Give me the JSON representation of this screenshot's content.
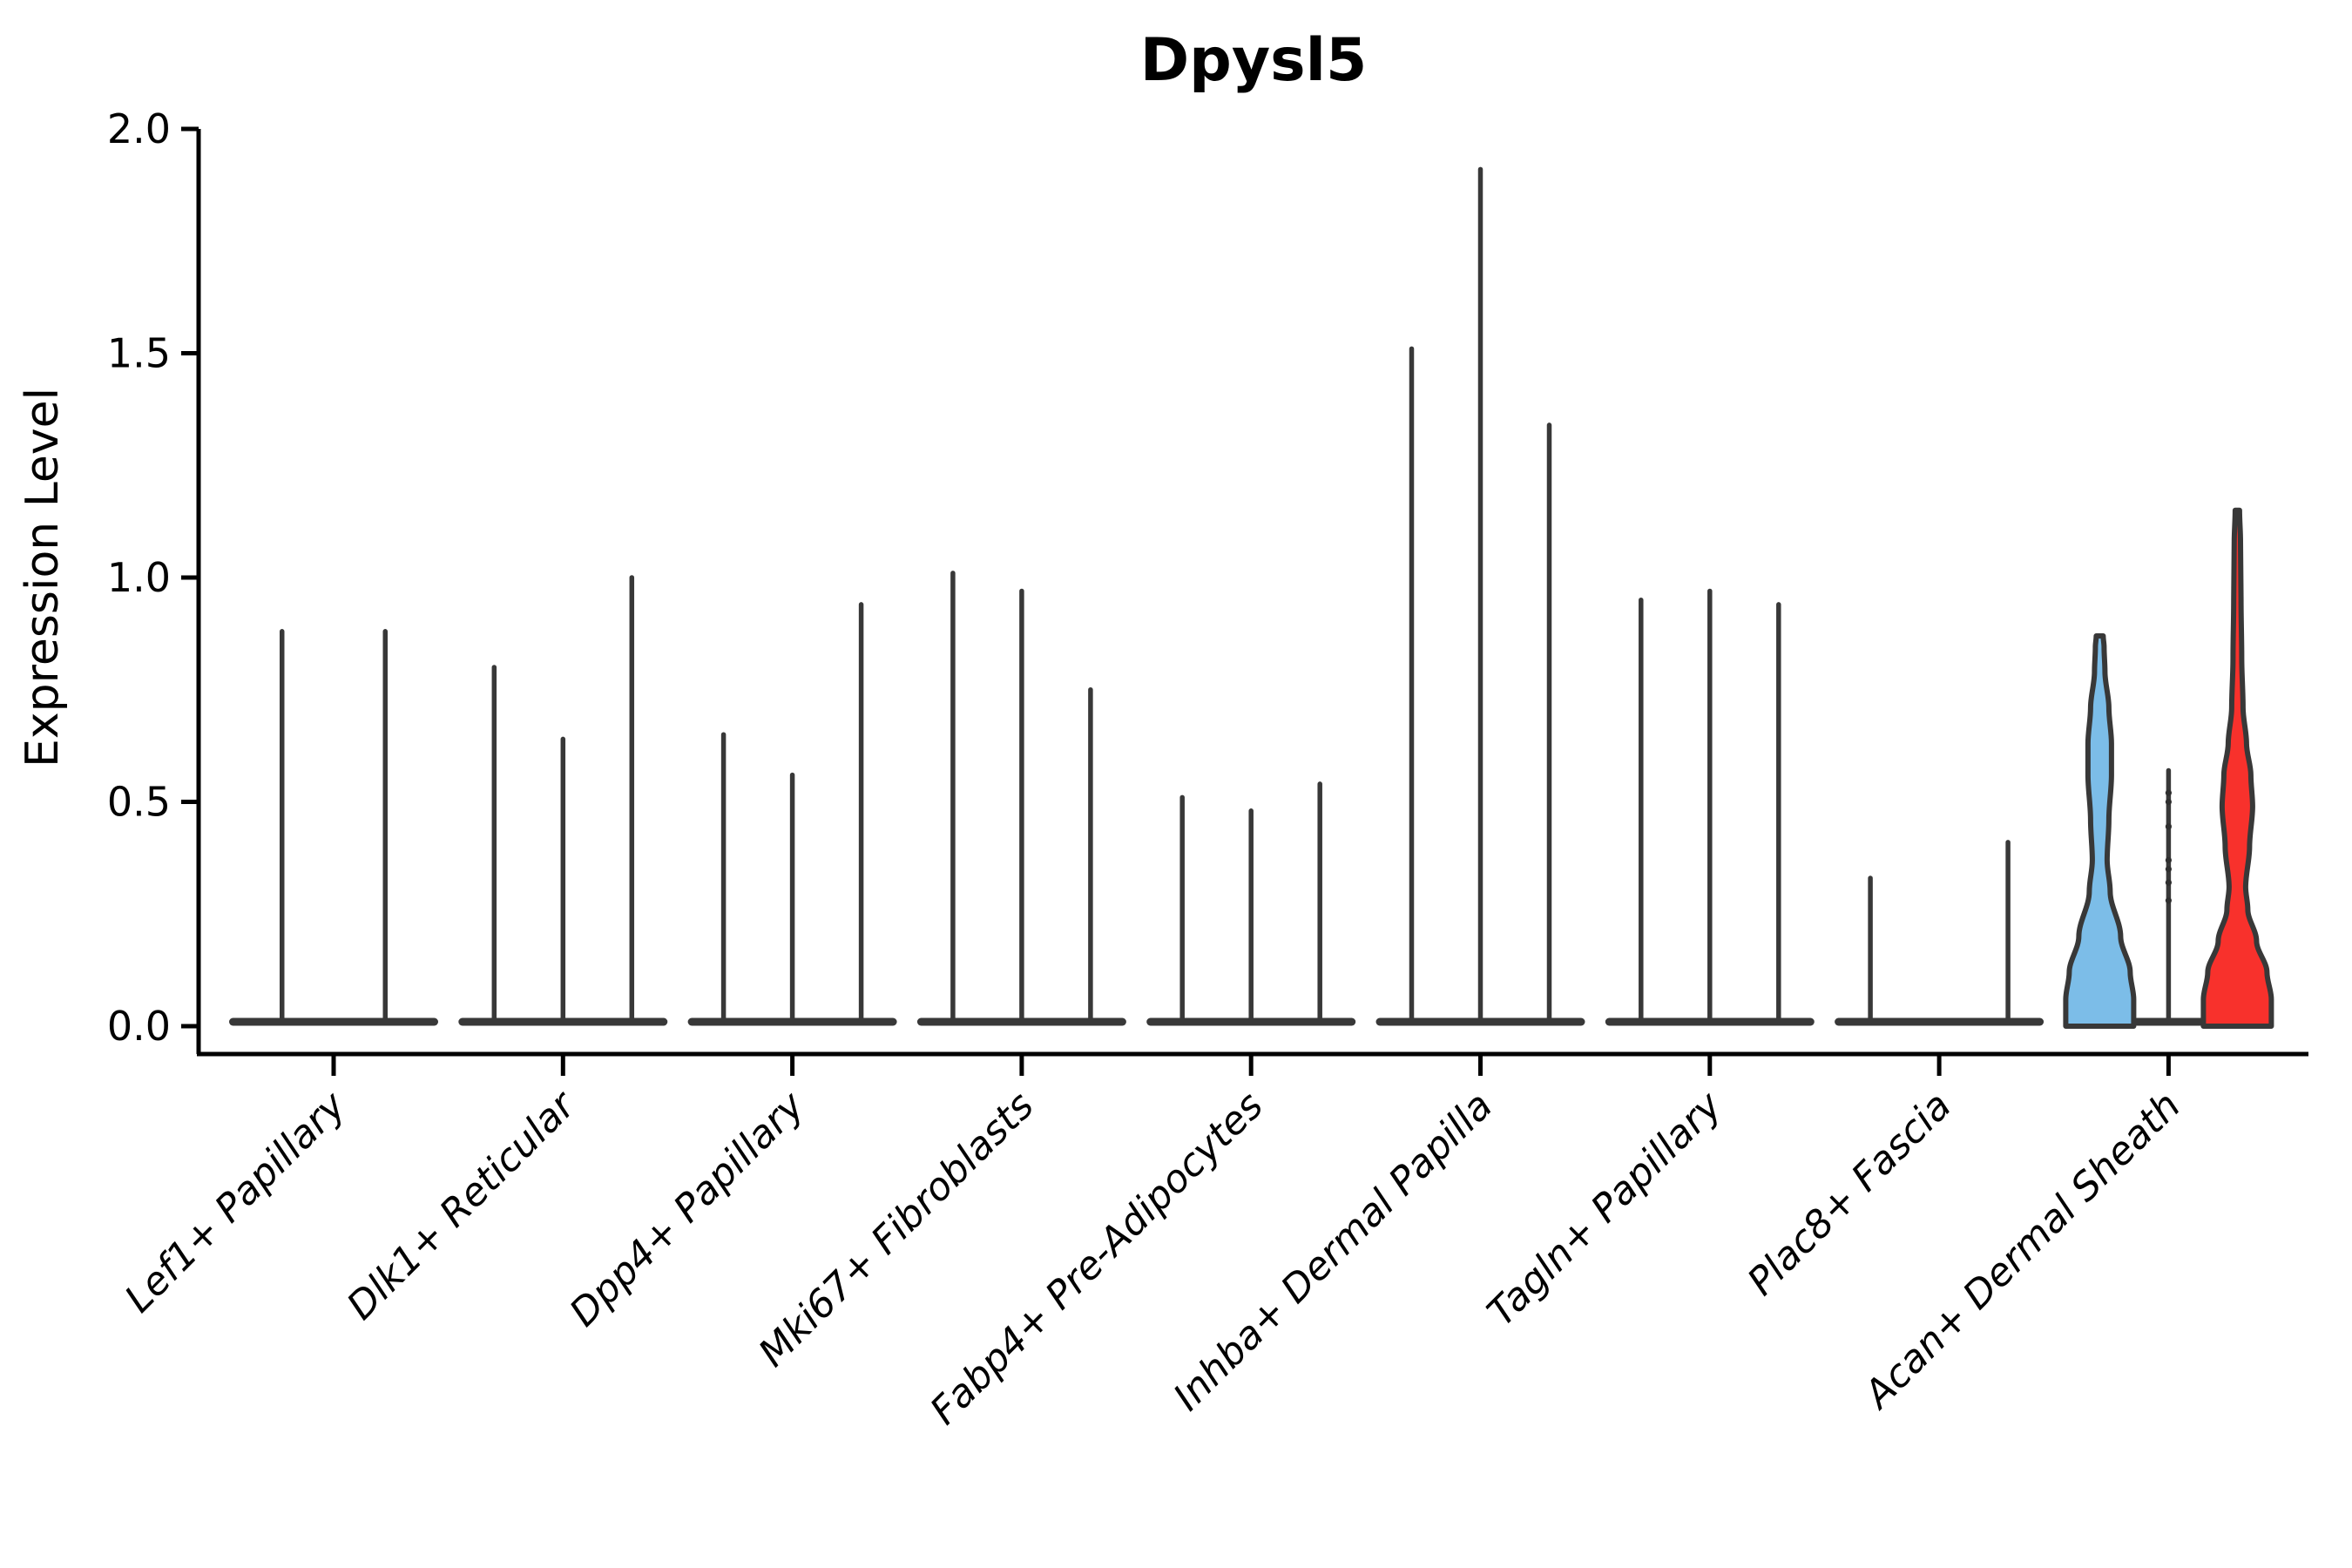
{
  "chart_data": {
    "type": "violin",
    "title": "Dpysl5",
    "ylabel": "Expression Level",
    "xlabel": "",
    "ylim": [
      0,
      2
    ],
    "yticks": [
      0.0,
      0.5,
      1.0,
      1.5,
      2.0
    ],
    "ytick_labels": [
      "0.0",
      "0.5",
      "1.0",
      "1.5",
      "2.0"
    ],
    "grid": false,
    "legend": "none",
    "categories": [
      "Lef1+ Papillary",
      "Dlk1+ Reticular",
      "Dpp4+ Papillary",
      "Mki67+ Fibroblasts",
      "Fabp4+ Pre-Adipocytes",
      "Inhba+ Dermal Papilla",
      "Tagln+ Papillary",
      "Plac8+ Fascia",
      "Acan+ Dermal Sheath"
    ],
    "groups": [
      {
        "label": "Lef1+ Papillary",
        "violins": [
          {
            "style": "line",
            "top": 0.88
          },
          {
            "style": "line",
            "top": 0.88
          }
        ]
      },
      {
        "label": "Dlk1+ Reticular",
        "violins": [
          {
            "style": "line",
            "top": 0.8
          },
          {
            "style": "line",
            "top": 0.64
          },
          {
            "style": "line",
            "top": 1.0
          }
        ]
      },
      {
        "label": "Dpp4+ Papillary",
        "violins": [
          {
            "style": "line",
            "top": 0.65
          },
          {
            "style": "line",
            "top": 0.56
          },
          {
            "style": "line",
            "top": 0.94
          }
        ]
      },
      {
        "label": "Mki67+ Fibroblasts",
        "violins": [
          {
            "style": "line",
            "top": 1.01
          },
          {
            "style": "line",
            "top": 0.97
          },
          {
            "style": "line",
            "top": 0.75
          }
        ]
      },
      {
        "label": "Fabp4+ Pre-Adipocytes",
        "violins": [
          {
            "style": "line",
            "top": 0.51
          },
          {
            "style": "line",
            "top": 0.48
          },
          {
            "style": "line",
            "top": 0.54
          }
        ]
      },
      {
        "label": "Inhba+ Dermal Papilla",
        "violins": [
          {
            "style": "line",
            "top": 1.51
          },
          {
            "style": "line",
            "top": 1.91
          },
          {
            "style": "line",
            "top": 1.34
          }
        ]
      },
      {
        "label": "Tagln+ Papillary",
        "violins": [
          {
            "style": "line",
            "top": 0.95
          },
          {
            "style": "line",
            "top": 0.97
          },
          {
            "style": "line",
            "top": 0.94
          }
        ]
      },
      {
        "label": "Plac8+ Fascia",
        "violins": [
          {
            "style": "line",
            "top": 0.33
          },
          {
            "style": "line",
            "top": 0.0
          },
          {
            "style": "line",
            "top": 0.41
          }
        ]
      },
      {
        "label": "Acan+ Dermal Sheath",
        "violins": [
          {
            "style": "filled",
            "color": "#7CBDE8",
            "top": 0.87,
            "profile": [
              [
                0,
                39
              ],
              [
                0.06,
                39
              ],
              [
                0.12,
                35
              ],
              [
                0.2,
                24
              ],
              [
                0.3,
                12
              ],
              [
                0.37,
                8.5
              ],
              [
                0.46,
                10.5
              ],
              [
                0.56,
                13.5
              ],
              [
                0.63,
                13.5
              ],
              [
                0.71,
                10.5
              ],
              [
                0.79,
                6
              ],
              [
                0.845,
                5
              ],
              [
                0.87,
                4
              ]
            ]
          },
          {
            "style": "line",
            "top": 0.57,
            "dots": [
              0.52,
              0.5,
              0.445,
              0.37,
              0.35,
              0.32,
              0.28
            ]
          },
          {
            "style": "filled",
            "color": "#F8312C",
            "top": 1.15,
            "profile": [
              [
                0,
                39
              ],
              [
                0.06,
                39
              ],
              [
                0.12,
                34
              ],
              [
                0.19,
                22
              ],
              [
                0.26,
                12
              ],
              [
                0.31,
                9.5
              ],
              [
                0.4,
                14
              ],
              [
                0.49,
                17.5
              ],
              [
                0.56,
                15.5
              ],
              [
                0.63,
                10.5
              ],
              [
                0.71,
                6.5
              ],
              [
                0.82,
                5
              ],
              [
                0.95,
                4.2
              ],
              [
                1.08,
                3.6
              ],
              [
                1.15,
                2.5
              ]
            ]
          }
        ]
      }
    ],
    "colors": {
      "violin_stroke": "#383838",
      "axis": "#000000",
      "highlight_blue": "#7CBDE8",
      "highlight_red": "#F8312C",
      "background": "#ffffff"
    }
  }
}
